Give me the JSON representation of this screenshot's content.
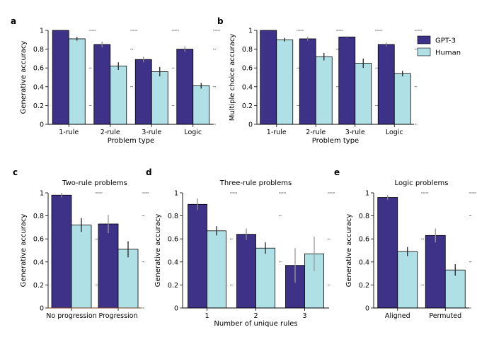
{
  "colors": {
    "gpt3": "#3e3288",
    "human": "#aee0e6",
    "error_bar": "#000000",
    "error_bar_light": "#999999",
    "dots": "#333333",
    "axis": "#000000",
    "zero_line": "#a0522d"
  },
  "legend": {
    "items": [
      {
        "label": "GPT-3",
        "color": "#3e3288"
      },
      {
        "label": "Human",
        "color": "#aee0e6"
      }
    ],
    "placement": "right of panel b"
  },
  "chart_data": [
    {
      "panel": "a",
      "type": "bar",
      "title": "",
      "xlabel": "Problem type",
      "ylabel": "Generative accuracy",
      "ylim": [
        0,
        1
      ],
      "yticks": [
        "0",
        "0.2",
        "0.4",
        "0.6",
        "0.8",
        "1"
      ],
      "categories": [
        "1-rule",
        "2-rule",
        "3-rule",
        "Logic"
      ],
      "series": [
        {
          "name": "GPT-3",
          "values": [
            1.0,
            0.85,
            0.69,
            0.8
          ],
          "errors": [
            0,
            0.03,
            0.03,
            0.03
          ]
        },
        {
          "name": "Human",
          "values": [
            0.91,
            0.62,
            0.56,
            0.41
          ],
          "errors": [
            0.02,
            0.04,
            0.05,
            0.03
          ]
        }
      ]
    },
    {
      "panel": "b",
      "type": "bar",
      "title": "",
      "xlabel": "Problem type",
      "ylabel": "Multiple choice accuracy",
      "ylim": [
        0,
        1
      ],
      "yticks": [
        "0",
        "0.2",
        "0.4",
        "0.6",
        "0.8",
        "1"
      ],
      "categories": [
        "1-rule",
        "2-rule",
        "3-rule",
        "Logic"
      ],
      "series": [
        {
          "name": "GPT-3",
          "values": [
            1.0,
            0.91,
            0.93,
            0.85
          ],
          "errors": [
            0,
            0.02,
            0.01,
            0.02
          ]
        },
        {
          "name": "Human",
          "values": [
            0.9,
            0.72,
            0.65,
            0.54
          ],
          "errors": [
            0.02,
            0.04,
            0.05,
            0.03
          ]
        }
      ]
    },
    {
      "panel": "c",
      "type": "bar",
      "title": "Two-rule problems",
      "xlabel": "",
      "ylabel": "Generative accuracy",
      "ylim": [
        0,
        1
      ],
      "yticks": [
        "0",
        "0.2",
        "0.4",
        "0.6",
        "0.8",
        "1"
      ],
      "categories": [
        "No progression",
        "Progression"
      ],
      "series": [
        {
          "name": "GPT-3",
          "values": [
            0.98,
            0.73
          ],
          "errors": [
            0.02,
            0.08
          ]
        },
        {
          "name": "Human",
          "values": [
            0.72,
            0.51
          ],
          "errors": [
            0.06,
            0.07
          ]
        }
      ]
    },
    {
      "panel": "d",
      "type": "bar",
      "title": "Three-rule problems",
      "xlabel": "Number of unique rules",
      "ylabel": "Generative accuracy",
      "ylim": [
        0,
        1
      ],
      "yticks": [
        "0",
        "0.2",
        "0.4",
        "0.6",
        "0.8",
        "1"
      ],
      "categories": [
        "1",
        "2",
        "3"
      ],
      "series": [
        {
          "name": "GPT-3",
          "values": [
            0.9,
            0.64,
            0.37
          ],
          "errors": [
            0.05,
            0.05,
            0.15
          ]
        },
        {
          "name": "Human",
          "values": [
            0.67,
            0.52,
            0.47
          ],
          "errors": [
            0.04,
            0.05,
            0.15
          ]
        }
      ]
    },
    {
      "panel": "e",
      "type": "bar",
      "title": "Logic problems",
      "xlabel": "",
      "ylabel": "Generative accuracy",
      "ylim": [
        0,
        1
      ],
      "yticks": [
        "0",
        "0.2",
        "0.4",
        "0.6",
        "0.8",
        "1"
      ],
      "categories": [
        "Aligned",
        "Permuted"
      ],
      "series": [
        {
          "name": "GPT-3",
          "values": [
            0.96,
            0.63
          ],
          "errors": [
            0.02,
            0.06
          ]
        },
        {
          "name": "Human",
          "values": [
            0.49,
            0.33
          ],
          "errors": [
            0.04,
            0.05
          ]
        }
      ]
    }
  ]
}
